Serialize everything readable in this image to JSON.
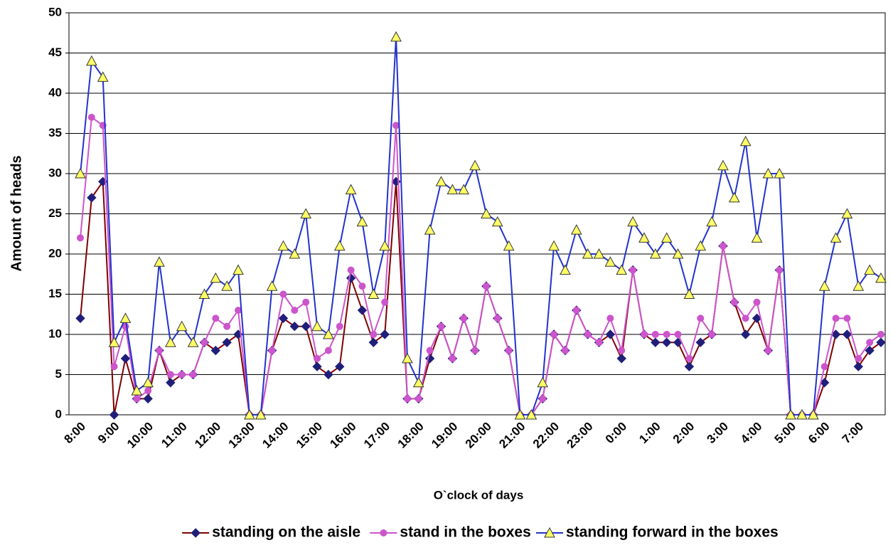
{
  "chart_data": {
    "type": "line",
    "x_label": "O`clock of days",
    "y_label": "Amount of heads",
    "categories": [
      "8:00",
      null,
      null,
      "9:00",
      null,
      null,
      "10:00",
      null,
      null,
      "11:00",
      null,
      null,
      "12:00",
      null,
      null,
      "13:00",
      null,
      null,
      "14:00",
      null,
      null,
      "15:00",
      null,
      null,
      "16:00",
      null,
      null,
      "17:00",
      null,
      null,
      "18:00",
      null,
      null,
      "19:00",
      null,
      null,
      "20:00",
      null,
      null,
      "21:00",
      null,
      null,
      "22:00",
      null,
      null,
      "23:00",
      null,
      null,
      "0:00",
      null,
      null,
      "1:00",
      null,
      null,
      "2:00",
      null,
      null,
      "3:00",
      null,
      null,
      "4:00",
      null,
      null,
      "5:00",
      null,
      null,
      "6:00",
      null,
      null,
      "7:00",
      null,
      null
    ],
    "series": [
      {
        "name": "standing on the aisle",
        "color": "#800000",
        "marker": "diamond",
        "marker_color": "#1f1f7a",
        "values": [
          12,
          27,
          29,
          0,
          7,
          2,
          2,
          8,
          4,
          5,
          5,
          9,
          8,
          9,
          10,
          0,
          0,
          8,
          12,
          11,
          11,
          6,
          5,
          6,
          17,
          13,
          9,
          10,
          29,
          2,
          2,
          7,
          11,
          7,
          12,
          8,
          16,
          12,
          8,
          0,
          0,
          2,
          10,
          8,
          13,
          10,
          9,
          10,
          7,
          18,
          10,
          9,
          9,
          9,
          6,
          9,
          10,
          21,
          14,
          10,
          12,
          8,
          18,
          0,
          0,
          0,
          4,
          10,
          10,
          6,
          8,
          9
        ]
      },
      {
        "name": "stand in the boxes",
        "color": "#cc55cc",
        "marker": "circle",
        "marker_color": "#cc55cc",
        "values": [
          22,
          37,
          36,
          6,
          11,
          2,
          3,
          8,
          5,
          5,
          5,
          9,
          12,
          11,
          13,
          0,
          0,
          8,
          15,
          13,
          14,
          7,
          8,
          11,
          18,
          16,
          10,
          14,
          36,
          2,
          2,
          8,
          11,
          7,
          12,
          8,
          16,
          12,
          8,
          0,
          0,
          2,
          10,
          8,
          13,
          10,
          9,
          12,
          8,
          18,
          10,
          10,
          10,
          10,
          7,
          12,
          10,
          21,
          14,
          12,
          14,
          8,
          18,
          0,
          0,
          0,
          6,
          12,
          12,
          7,
          9,
          10
        ]
      },
      {
        "name": "standing forward in the boxes",
        "color": "#2233cc",
        "marker": "triangle",
        "marker_color": "#ffff66",
        "values": [
          30,
          44,
          42,
          9,
          12,
          3,
          4,
          19,
          9,
          11,
          9,
          15,
          17,
          16,
          18,
          0,
          0,
          16,
          21,
          20,
          25,
          11,
          10,
          21,
          28,
          24,
          15,
          21,
          47,
          7,
          4,
          23,
          29,
          28,
          28,
          31,
          25,
          24,
          21,
          0,
          0,
          4,
          21,
          18,
          23,
          20,
          20,
          19,
          18,
          24,
          22,
          20,
          22,
          20,
          15,
          21,
          24,
          31,
          27,
          34,
          22,
          30,
          30,
          0,
          0,
          0,
          16,
          22,
          25,
          16,
          18,
          17
        ]
      }
    ],
    "ylim": [
      0,
      50
    ],
    "yticks": [
      0,
      5,
      10,
      15,
      20,
      25,
      30,
      35,
      40,
      45,
      50
    ],
    "grid": true,
    "legend": "bottom"
  }
}
